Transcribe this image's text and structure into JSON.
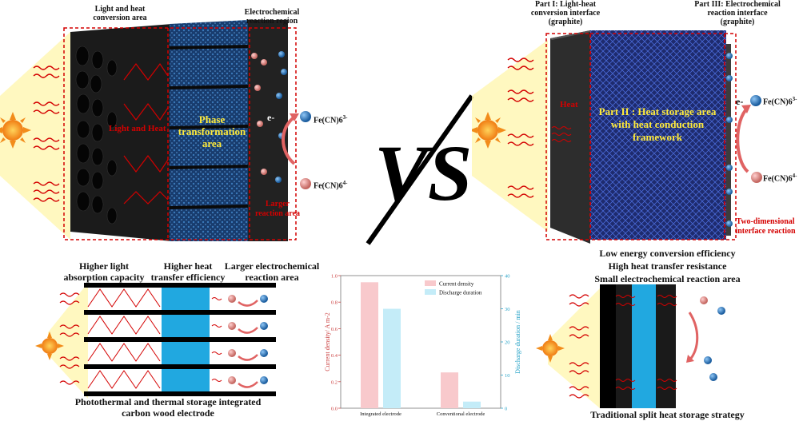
{
  "left_top": {
    "label_light_heat": "Light and heat\nconversion area",
    "label_electrochemical": "Electrochemical\nreaction region",
    "light_and_heat": "Light and Heat",
    "phase_area": "Phase\ntransformation\narea",
    "electron": "e-",
    "fe_upper": "Fe(CN)6",
    "fe_upper_charge": "3-",
    "fe_lower": "Fe(CN)6",
    "fe_lower_charge": "4-",
    "larger_reaction": "Larger\nreaction area"
  },
  "vs_text": "VS",
  "right_top": {
    "part1": "Part I: Light-heat\nconversion interface\n(graphite)",
    "part3": "Part III: Electrochemical\nreaction interface\n(graphite)",
    "heat": "Heat",
    "part2": "Part II : Heat storage area\nwith heat conduction\nframework",
    "electron": "e-",
    "fe_upper": "Fe(CN)6",
    "fe_upper_charge": "3-",
    "fe_lower": "Fe(CN)6",
    "fe_lower_charge": "4-",
    "two_dim": "Two-dimensional\ninterface reaction"
  },
  "right_bottom": {
    "line1": "Low energy conversion efficiency",
    "line2": "High heat transfer resistance",
    "line3": "Small electrochemical reaction area",
    "caption": "Traditional split heat storage strategy"
  },
  "left_bottom": {
    "head1": "Higher light\nabsorption capacity",
    "head2": "Higher heat\ntransfer efficiency",
    "head3": "Larger electrochemical\nreaction area",
    "caption": "Photothermal and thermal storage integrated\ncarbon wood electrode"
  },
  "chart_data": {
    "type": "bar",
    "categories": [
      "Integrated electrode",
      "Conventional electrode"
    ],
    "series": [
      {
        "name": "Current density",
        "axis": "left",
        "values": [
          0.95,
          0.27
        ],
        "color": "#f8c9cc"
      },
      {
        "name": "Discharge duration",
        "axis": "right",
        "values": [
          30,
          2
        ],
        "color": "#c4ecf8"
      }
    ],
    "ylabel_left": "Current density/ A m-2",
    "ylabel_right": "Discharge duration / min",
    "ylim_left": [
      0.0,
      1.0
    ],
    "ylim_right": [
      0,
      40
    ],
    "yticks_left": [
      "0.0",
      "0.2",
      "0.4",
      "0.6",
      "0.8",
      "1.0"
    ],
    "yticks_right": [
      "0",
      "10",
      "20",
      "30",
      "40"
    ],
    "legend_position": "top-right",
    "grid": false
  }
}
